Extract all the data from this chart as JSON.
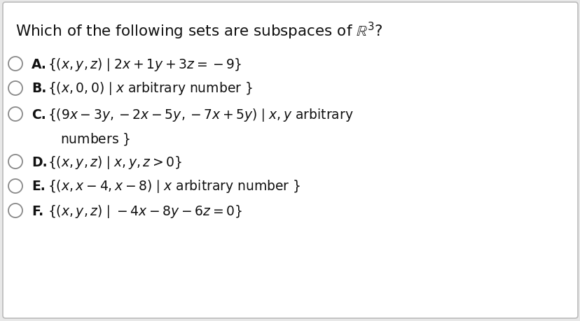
{
  "bg_color": "#e8e8e8",
  "card_color": "#ffffff",
  "border_color": "#bbbbbb",
  "text_color": "#111111",
  "title": "Which of the following sets are subspaces of ",
  "options": [
    {
      "label": "A.",
      "line1": "\\{(x, y, z) \\mid 2x + 1y + 3z = -9\\}",
      "line2": null
    },
    {
      "label": "B.",
      "line1": "\\{(x, 0, 0) \\mid x\\ \\mathrm{arbitrary\\ number}\\}",
      "line2": null
    },
    {
      "label": "C.",
      "line1": "\\{(9x - 3y,\\,-2x - 5y,\\,-7x + 5y) \\mid x,\\ y\\ \\mathrm{arbitrary}",
      "line2": "\\mathrm{numbers}\\}"
    },
    {
      "label": "D.",
      "line1": "\\{(x, y, z) \\mid x, y, z > 0\\}",
      "line2": null
    },
    {
      "label": "E.",
      "line1": "\\{(x, x - 4, x - 8) \\mid x\\ \\mathrm{arbitrary\\ number}\\}",
      "line2": null
    },
    {
      "label": "F.",
      "line1": "\\{(x, y, z) \\mid -4x - 8y - 6z = 0\\}",
      "line2": null
    }
  ],
  "fontsize": 13.5,
  "title_fontsize": 15.5
}
